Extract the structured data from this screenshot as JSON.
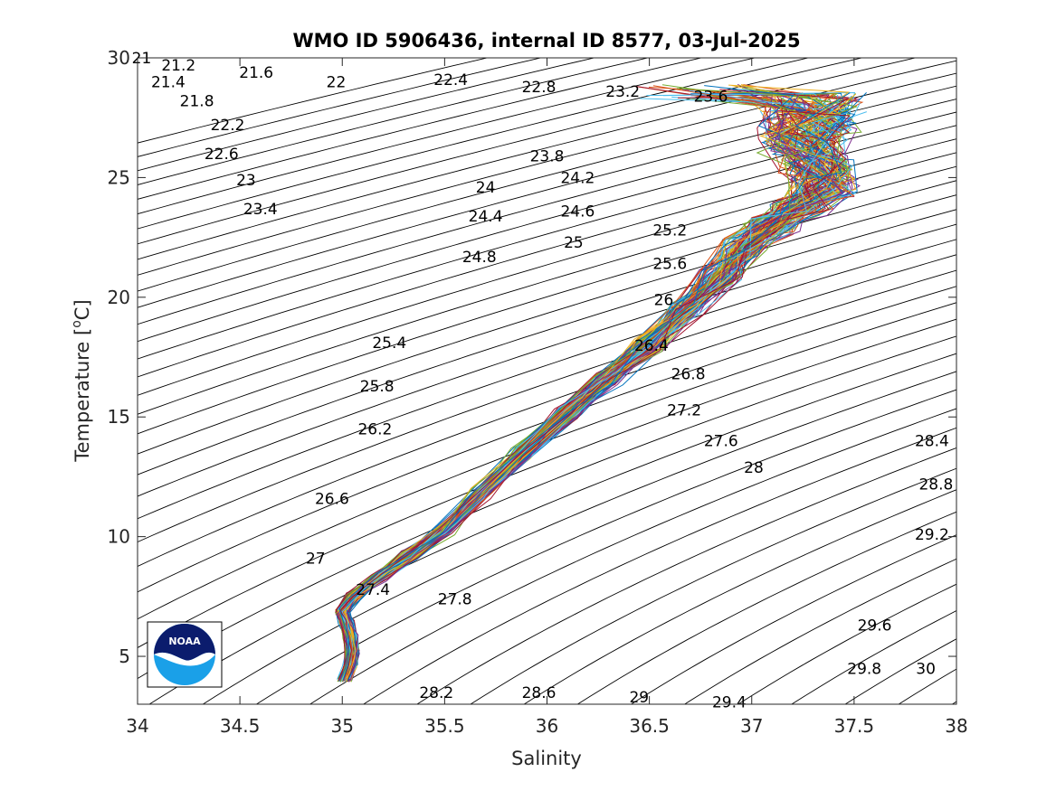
{
  "chart_data": {
    "type": "line",
    "title": "WMO ID 5906436, internal ID 8577, 03-Jul-2025",
    "xlabel": "Salinity",
    "ylabel_prefix": "Temperature [",
    "ylabel_unit": "o",
    "ylabel_suffix": "C]",
    "xlim": [
      34,
      38
    ],
    "ylim": [
      3,
      30
    ],
    "xticks": [
      "34",
      "34.5",
      "35",
      "35.5",
      "36",
      "36.5",
      "37",
      "37.5",
      "38"
    ],
    "yticks": [
      "5",
      "10",
      "15",
      "20",
      "25",
      "30"
    ],
    "grid": false,
    "legend": "none",
    "density_contours": {
      "levels": [
        21,
        21.2,
        21.4,
        21.6,
        21.8,
        22,
        22.2,
        22.4,
        22.6,
        22.8,
        23,
        23.2,
        23.4,
        23.6,
        23.8,
        24,
        24.2,
        24.4,
        24.6,
        24.8,
        25,
        25.2,
        25.4,
        25.6,
        25.8,
        26,
        26.2,
        26.4,
        26.6,
        26.8,
        27,
        27.2,
        27.4,
        27.6,
        27.8,
        28,
        28.2,
        28.4,
        28.6,
        28.8,
        29,
        29.2,
        29.4,
        29.6,
        29.8,
        30
      ],
      "labels": [
        {
          "text": "21",
          "s": 34.02,
          "t": 30.0
        },
        {
          "text": "21.2",
          "s": 34.2,
          "t": 29.7
        },
        {
          "text": "21.4",
          "s": 34.15,
          "t": 29.0
        },
        {
          "text": "21.6",
          "s": 34.58,
          "t": 29.4
        },
        {
          "text": "21.8",
          "s": 34.29,
          "t": 28.2
        },
        {
          "text": "22",
          "s": 34.97,
          "t": 29.0
        },
        {
          "text": "22.2",
          "s": 34.44,
          "t": 27.2
        },
        {
          "text": "22.4",
          "s": 35.53,
          "t": 29.1
        },
        {
          "text": "22.6",
          "s": 34.41,
          "t": 26.0
        },
        {
          "text": "22.8",
          "s": 35.96,
          "t": 28.8
        },
        {
          "text": "23",
          "s": 34.53,
          "t": 24.9
        },
        {
          "text": "23.2",
          "s": 36.37,
          "t": 28.6
        },
        {
          "text": "23.4",
          "s": 34.6,
          "t": 23.7
        },
        {
          "text": "23.6",
          "s": 36.8,
          "t": 28.4
        },
        {
          "text": "23.8",
          "s": 36.0,
          "t": 25.9
        },
        {
          "text": "24",
          "s": 35.7,
          "t": 24.6
        },
        {
          "text": "24.2",
          "s": 36.15,
          "t": 25.0
        },
        {
          "text": "24.4",
          "s": 35.7,
          "t": 23.4
        },
        {
          "text": "24.6",
          "s": 36.15,
          "t": 23.6
        },
        {
          "text": "24.8",
          "s": 35.67,
          "t": 21.7
        },
        {
          "text": "25",
          "s": 36.13,
          "t": 22.3
        },
        {
          "text": "25.2",
          "s": 36.6,
          "t": 22.8
        },
        {
          "text": "25.4",
          "s": 35.23,
          "t": 18.1
        },
        {
          "text": "25.6",
          "s": 36.6,
          "t": 21.4
        },
        {
          "text": "25.8",
          "s": 35.17,
          "t": 16.3
        },
        {
          "text": "26",
          "s": 36.57,
          "t": 19.9
        },
        {
          "text": "26.2",
          "s": 35.16,
          "t": 14.5
        },
        {
          "text": "26.4",
          "s": 36.51,
          "t": 18.0
        },
        {
          "text": "26.6",
          "s": 34.95,
          "t": 11.6
        },
        {
          "text": "26.8",
          "s": 36.69,
          "t": 16.8
        },
        {
          "text": "27",
          "s": 34.87,
          "t": 9.1
        },
        {
          "text": "27.2",
          "s": 36.67,
          "t": 15.3
        },
        {
          "text": "27.4",
          "s": 35.15,
          "t": 7.8
        },
        {
          "text": "27.6",
          "s": 36.85,
          "t": 14.0
        },
        {
          "text": "27.8",
          "s": 35.55,
          "t": 7.4
        },
        {
          "text": "28",
          "s": 37.01,
          "t": 12.9
        },
        {
          "text": "28.2",
          "s": 35.46,
          "t": 3.5
        },
        {
          "text": "28.4",
          "s": 37.88,
          "t": 14.0
        },
        {
          "text": "28.6",
          "s": 35.96,
          "t": 3.5
        },
        {
          "text": "28.8",
          "s": 37.9,
          "t": 12.2
        },
        {
          "text": "29",
          "s": 36.45,
          "t": 3.3
        },
        {
          "text": "29.2",
          "s": 37.88,
          "t": 10.1
        },
        {
          "text": "29.4",
          "s": 36.89,
          "t": 3.1
        },
        {
          "text": "29.6",
          "s": 37.6,
          "t": 6.3
        },
        {
          "text": "29.8",
          "s": 37.55,
          "t": 4.5
        },
        {
          "text": "30",
          "s": 37.85,
          "t": 4.5
        }
      ]
    },
    "profile_colors": [
      "#0072bd",
      "#d95319",
      "#edb120",
      "#7e2f8e",
      "#77ac30",
      "#4dbeee",
      "#a2142f"
    ],
    "mean_profile": [
      {
        "s": 35.01,
        "t": 4.0
      },
      {
        "s": 35.04,
        "t": 4.6
      },
      {
        "s": 35.05,
        "t": 5.2
      },
      {
        "s": 35.04,
        "t": 5.8
      },
      {
        "s": 35.02,
        "t": 6.4
      },
      {
        "s": 35.0,
        "t": 6.9
      },
      {
        "s": 35.05,
        "t": 7.5
      },
      {
        "s": 35.18,
        "t": 8.3
      },
      {
        "s": 35.33,
        "t": 9.2
      },
      {
        "s": 35.5,
        "t": 10.3
      },
      {
        "s": 35.68,
        "t": 11.8
      },
      {
        "s": 35.88,
        "t": 13.5
      },
      {
        "s": 36.1,
        "t": 15.2
      },
      {
        "s": 36.3,
        "t": 16.6
      },
      {
        "s": 36.5,
        "t": 18.0
      },
      {
        "s": 36.68,
        "t": 19.5
      },
      {
        "s": 36.85,
        "t": 20.9
      },
      {
        "s": 36.97,
        "t": 22.1
      },
      {
        "s": 37.1,
        "t": 23.0
      },
      {
        "s": 37.25,
        "t": 23.8
      },
      {
        "s": 37.35,
        "t": 24.6
      },
      {
        "s": 37.32,
        "t": 25.5
      },
      {
        "s": 37.25,
        "t": 26.4
      },
      {
        "s": 37.28,
        "t": 27.3
      },
      {
        "s": 37.3,
        "t": 28.1
      }
    ],
    "profile_count": 120
  },
  "logo": {
    "text": "NOAA"
  }
}
